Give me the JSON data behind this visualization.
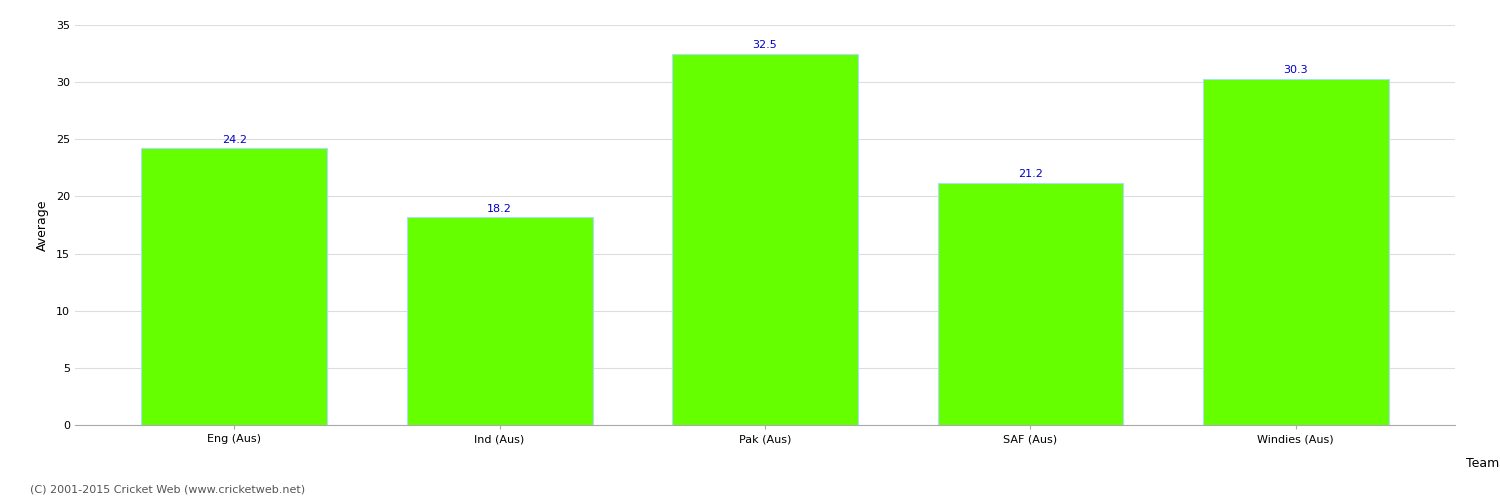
{
  "categories": [
    "Eng (Aus)",
    "Ind (Aus)",
    "Pak (Aus)",
    "SAF (Aus)",
    "Windies (Aus)"
  ],
  "values": [
    24.2,
    18.2,
    32.5,
    21.2,
    30.3
  ],
  "bar_color": "#66ff00",
  "bar_edge_color": "#aaddff",
  "value_label_color": "#0000cc",
  "value_label_fontsize": 8,
  "xlabel": "Team",
  "ylabel": "Average",
  "ylim": [
    0,
    35
  ],
  "yticks": [
    0,
    5,
    10,
    15,
    20,
    25,
    30,
    35
  ],
  "grid_color": "#dddddd",
  "background_color": "#ffffff",
  "footer_text": "(C) 2001-2015 Cricket Web (www.cricketweb.net)",
  "footer_fontsize": 8,
  "footer_color": "#555555",
  "tick_label_fontsize": 8,
  "axis_label_fontsize": 9
}
